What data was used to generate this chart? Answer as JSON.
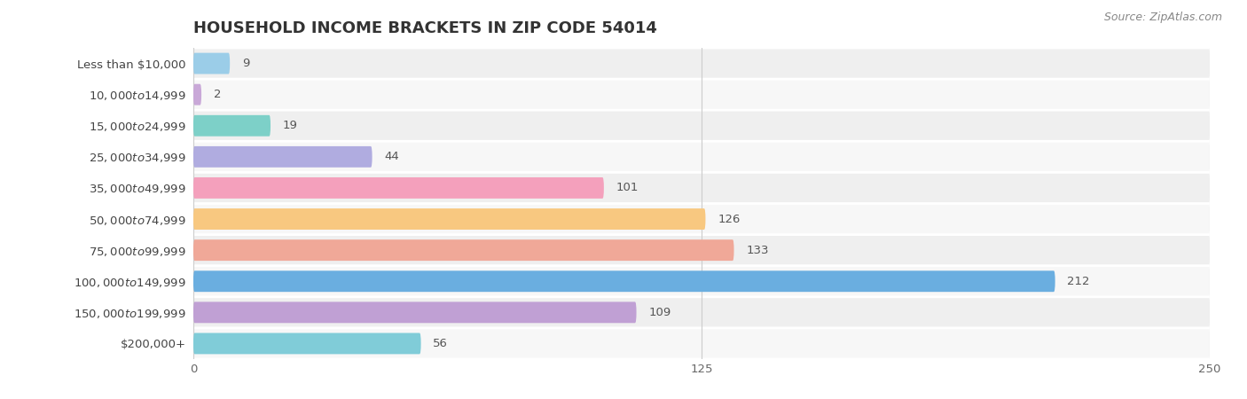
{
  "title": "HOUSEHOLD INCOME BRACKETS IN ZIP CODE 54014",
  "source": "Source: ZipAtlas.com",
  "categories": [
    "Less than $10,000",
    "$10,000 to $14,999",
    "$15,000 to $24,999",
    "$25,000 to $34,999",
    "$35,000 to $49,999",
    "$50,000 to $74,999",
    "$75,000 to $99,999",
    "$100,000 to $149,999",
    "$150,000 to $199,999",
    "$200,000+"
  ],
  "values": [
    9,
    2,
    19,
    44,
    101,
    126,
    133,
    212,
    109,
    56
  ],
  "bar_colors": [
    "#9bcde8",
    "#c9a8d8",
    "#7dd0c8",
    "#b0ace0",
    "#f4a0bc",
    "#f8c880",
    "#f0a898",
    "#6aaee0",
    "#c0a0d4",
    "#80ccd8"
  ],
  "row_bg_colors": [
    "#efefef",
    "#f7f7f7"
  ],
  "bar_bg_color": "#e0e0e8",
  "xlim_max": 250,
  "xticks": [
    0,
    125,
    250
  ],
  "title_fontsize": 13,
  "label_fontsize": 9.5,
  "value_fontsize": 9.5,
  "source_fontsize": 9
}
